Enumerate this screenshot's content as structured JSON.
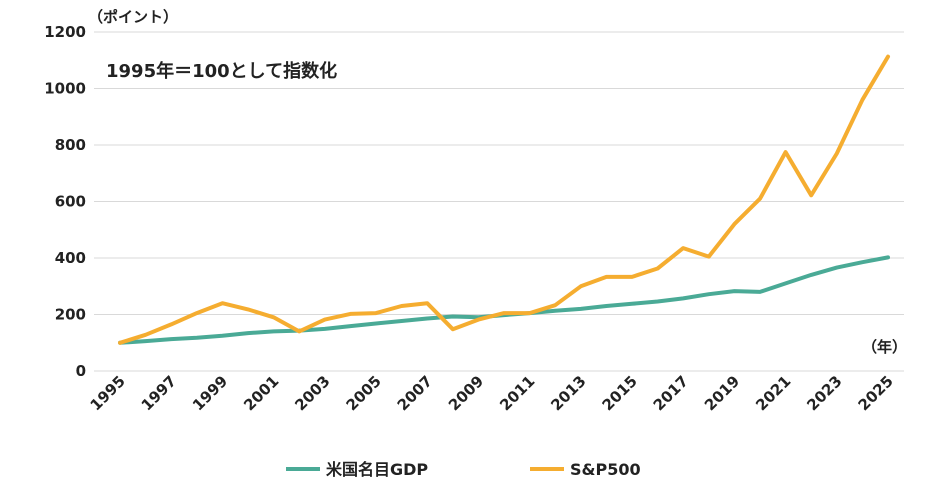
{
  "chart_data": {
    "type": "line",
    "y_unit": "（ポイント）",
    "x_unit": "（年）",
    "annotation": "1995年＝100として指数化",
    "x": [
      1995,
      1996,
      1997,
      1998,
      1999,
      2000,
      2001,
      2002,
      2003,
      2004,
      2005,
      2006,
      2007,
      2008,
      2009,
      2010,
      2011,
      2012,
      2013,
      2014,
      2015,
      2016,
      2017,
      2018,
      2019,
      2020,
      2021,
      2022,
      2023,
      2024,
      2025
    ],
    "x_tick_labels": [
      "1995",
      "1997",
      "1999",
      "2001",
      "2003",
      "2005",
      "2007",
      "2009",
      "2011",
      "2013",
      "2015",
      "2017",
      "2019",
      "2021",
      "2023",
      "2025"
    ],
    "y_tick_labels": [
      "0",
      "200",
      "400",
      "600",
      "800",
      "1000",
      "1200"
    ],
    "ylim": [
      0,
      1200
    ],
    "grid": "horizontal",
    "legend_position": "bottom",
    "series": [
      {
        "name": "米国名目GDP",
        "color": "#4aaa96",
        "values": [
          100,
          106,
          113,
          118,
          125,
          134,
          140,
          143,
          149,
          159,
          168,
          177,
          186,
          193,
          190,
          198,
          205,
          213,
          220,
          230,
          238,
          246,
          257,
          272,
          283,
          280,
          310,
          340,
          366,
          385,
          402
        ]
      },
      {
        "name": "S&P500",
        "color": "#f5ad30",
        "values": [
          100,
          128,
          165,
          205,
          240,
          218,
          190,
          140,
          182,
          202,
          205,
          230,
          240,
          148,
          182,
          205,
          205,
          233,
          300,
          333,
          333,
          363,
          435,
          405,
          520,
          610,
          775,
          622,
          770,
          960,
          1113
        ]
      }
    ]
  }
}
